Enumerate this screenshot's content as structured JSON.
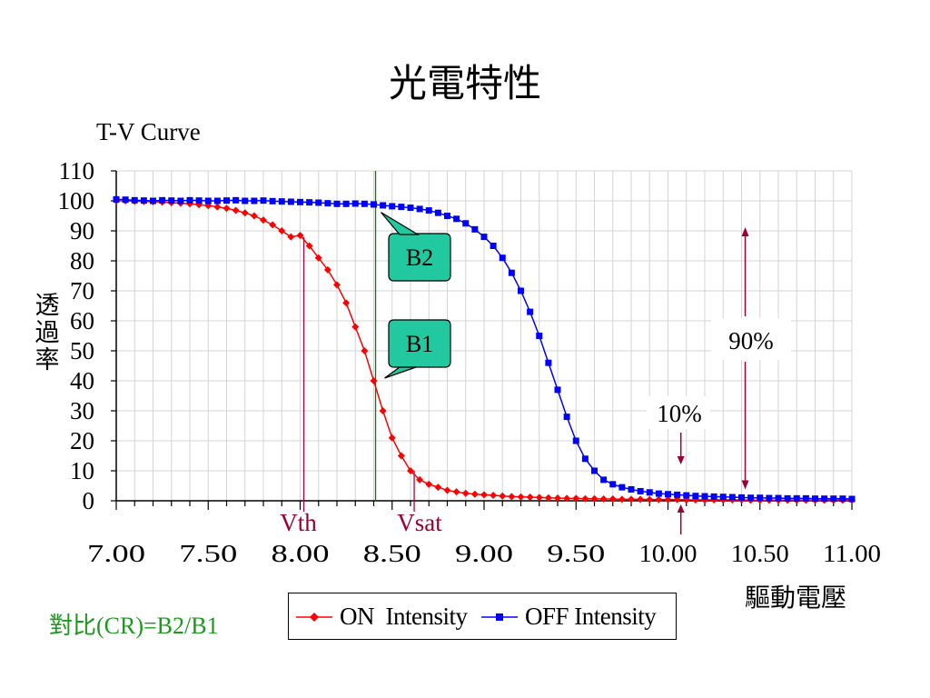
{
  "slide": {
    "title": "光電特性"
  },
  "contrast_text": "對比(CR)=B2/B1",
  "chart_data": {
    "type": "line",
    "title": "T-V Curve",
    "xlabel": "驅動電壓",
    "ylabel": "透過率",
    "xlim": [
      7.0,
      11.0
    ],
    "ylim": [
      0,
      110
    ],
    "xticks": [
      "7.00",
      "7.50",
      "8.00",
      "8.50",
      "9.00",
      "9.50",
      "10.00",
      "10.50",
      "11.00"
    ],
    "yticks": [
      "0",
      "10",
      "20",
      "30",
      "40",
      "50",
      "60",
      "70",
      "80",
      "90",
      "100",
      "110"
    ],
    "grid": true,
    "legend": "bottom",
    "series": [
      {
        "name": "ON  Intensity",
        "color": "#ff0000",
        "marker": "diamond",
        "x": [
          7.0,
          7.05,
          7.1,
          7.15,
          7.2,
          7.25,
          7.3,
          7.35,
          7.4,
          7.45,
          7.5,
          7.55,
          7.6,
          7.65,
          7.7,
          7.75,
          7.8,
          7.85,
          7.9,
          7.95,
          8.0,
          8.05,
          8.1,
          8.15,
          8.2,
          8.25,
          8.3,
          8.35,
          8.4,
          8.45,
          8.5,
          8.55,
          8.6,
          8.65,
          8.7,
          8.75,
          8.8,
          8.85,
          8.9,
          8.95,
          9.0,
          9.05,
          9.1,
          9.15,
          9.2,
          9.25,
          9.3,
          9.35,
          9.4,
          9.45,
          9.5,
          9.55,
          9.6,
          9.65,
          9.7,
          9.75,
          9.8,
          9.85,
          9.9,
          9.95,
          10.0,
          10.05,
          10.1,
          10.15,
          10.2,
          10.25,
          10.3,
          10.35,
          10.4,
          10.45,
          10.5,
          10.55,
          10.6,
          10.65,
          10.7,
          10.75,
          10.8,
          10.85,
          10.9,
          10.95,
          11.0
        ],
        "y": [
          100,
          100,
          99.9,
          99.8,
          99.7,
          99.6,
          99.4,
          99.2,
          99.0,
          98.7,
          98.4,
          98.0,
          97.5,
          96.8,
          96.0,
          95.0,
          93.6,
          92.0,
          90.0,
          88.0,
          88.5,
          85,
          81,
          77,
          72,
          66,
          58,
          50,
          40,
          30,
          21,
          15,
          10,
          7,
          5.5,
          4.5,
          3.5,
          3.0,
          2.5,
          2.2,
          2.0,
          1.8,
          1.6,
          1.4,
          1.3,
          1.2,
          1.1,
          1.0,
          0.9,
          0.8,
          0.8,
          0.7,
          0.7,
          0.6,
          0.6,
          0.5,
          0.5,
          0.5,
          0.4,
          0.4,
          0.4,
          0.4,
          0.3,
          0.3,
          0.3,
          0.3,
          0.3,
          0.3,
          0.3,
          0.2,
          0.2,
          0.2,
          0.2,
          0.2,
          0.2,
          0.2,
          0.2,
          0.2,
          0.2,
          0.2,
          0.2
        ]
      },
      {
        "name": "OFF Intensity",
        "color": "#0000ff",
        "marker": "square",
        "x": [
          7.0,
          7.05,
          7.1,
          7.15,
          7.2,
          7.25,
          7.3,
          7.35,
          7.4,
          7.45,
          7.5,
          7.55,
          7.6,
          7.65,
          7.7,
          7.75,
          7.8,
          7.85,
          7.9,
          7.95,
          8.0,
          8.05,
          8.1,
          8.15,
          8.2,
          8.25,
          8.3,
          8.35,
          8.4,
          8.45,
          8.5,
          8.55,
          8.6,
          8.65,
          8.7,
          8.75,
          8.8,
          8.85,
          8.9,
          8.95,
          9.0,
          9.05,
          9.1,
          9.15,
          9.2,
          9.25,
          9.3,
          9.35,
          9.4,
          9.45,
          9.5,
          9.55,
          9.6,
          9.65,
          9.7,
          9.75,
          9.8,
          9.85,
          9.9,
          9.95,
          10.0,
          10.05,
          10.1,
          10.15,
          10.2,
          10.25,
          10.3,
          10.35,
          10.4,
          10.45,
          10.5,
          10.55,
          10.6,
          10.65,
          10.7,
          10.75,
          10.8,
          10.85,
          10.9,
          10.95,
          11.0
        ],
        "y": [
          100.5,
          100.4,
          100.2,
          100.1,
          100,
          100.2,
          100.1,
          100,
          100.2,
          100.1,
          100,
          100,
          100.1,
          100.2,
          100,
          100,
          100.1,
          99.9,
          99.8,
          99.7,
          99.6,
          99.5,
          99.4,
          99.2,
          99.0,
          99.0,
          99.1,
          99.0,
          98.8,
          98.5,
          98.2,
          98.0,
          97.7,
          97.3,
          96.8,
          96.0,
          95.0,
          94.0,
          92.5,
          90.5,
          88.0,
          85.0,
          81.0,
          76.0,
          70.0,
          63.0,
          55.0,
          46.0,
          37.0,
          28.0,
          20.0,
          14.0,
          10.0,
          7.0,
          5.5,
          4.5,
          3.8,
          3.2,
          2.8,
          2.4,
          2.2,
          2.0,
          1.8,
          1.6,
          1.5,
          1.4,
          1.3,
          1.2,
          1.1,
          1.0,
          1.0,
          0.9,
          0.9,
          0.8,
          0.8,
          0.8,
          0.7,
          0.7,
          0.7,
          0.7,
          0.6
        ]
      }
    ],
    "annotations": {
      "vth": {
        "label": "Vth",
        "x": 8.02
      },
      "vsat": {
        "label": "Vsat",
        "x": 8.62
      },
      "marker_line_x": 8.41,
      "b2": {
        "label": "B2",
        "x": 8.41,
        "y": 98
      },
      "b1": {
        "label": "B1",
        "x": 8.41,
        "y": 40
      },
      "pct90": {
        "label": "90%",
        "x": 10.42,
        "y_top": 90,
        "y_bottom": 5
      },
      "pct10": {
        "label": "10%",
        "x": 10.07,
        "y": 10
      }
    }
  }
}
